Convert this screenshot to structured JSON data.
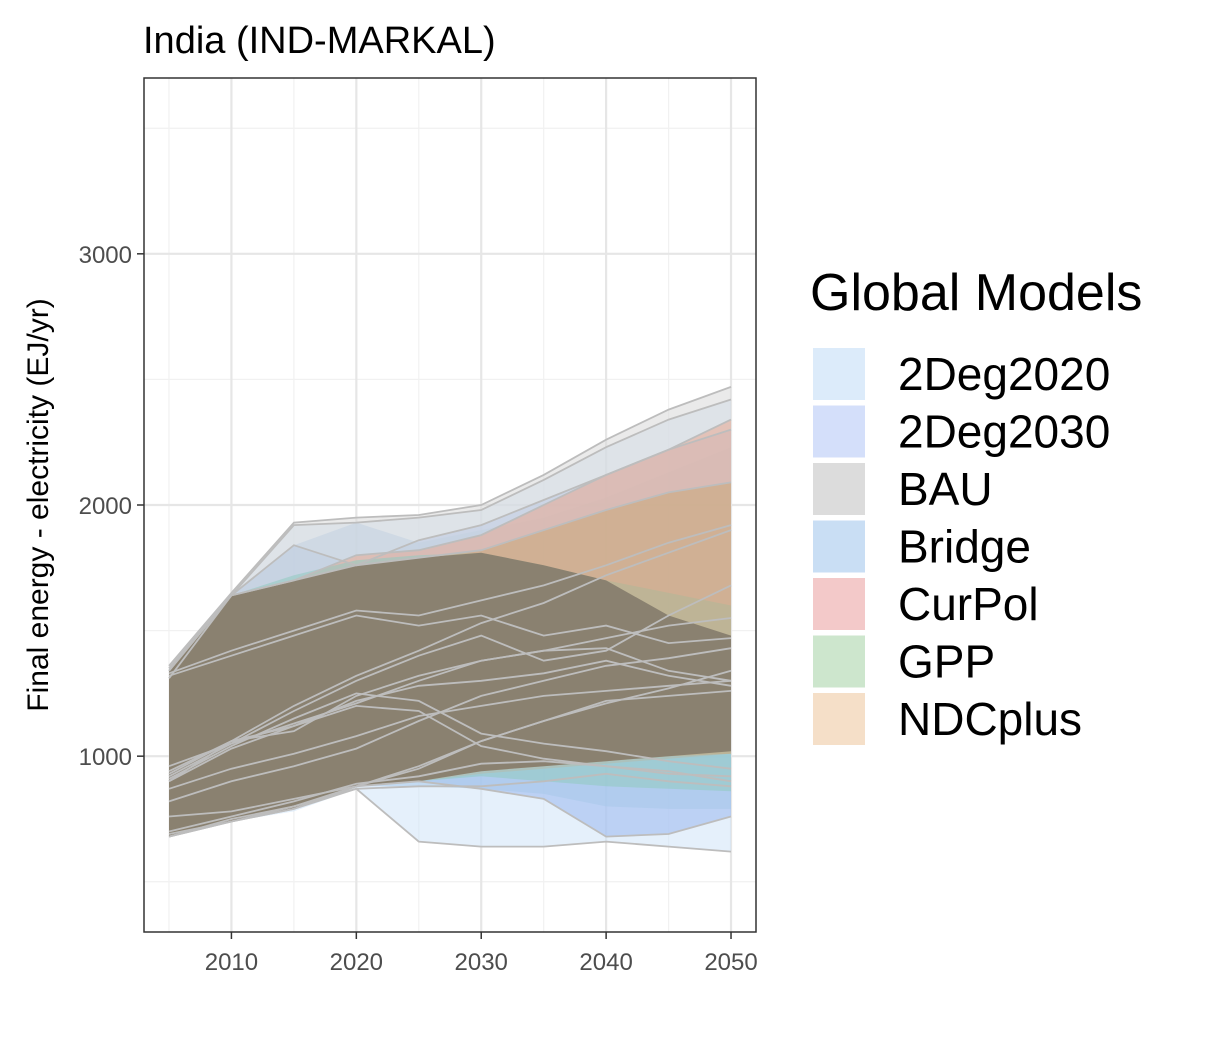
{
  "chart_data": {
    "type": "area",
    "title": "India (IND-MARKAL)",
    "xlabel": "",
    "ylabel": "Final energy - electricity (EJ/yr)",
    "xlim": [
      2003,
      2052
    ],
    "ylim": [
      300,
      3700
    ],
    "x_ticks": [
      2010,
      2020,
      2030,
      2040,
      2050
    ],
    "y_ticks": [
      1000,
      2000,
      3000
    ],
    "grid": true,
    "legend": {
      "title": "Global Models",
      "position": "right",
      "entries": [
        {
          "name": "2Deg2020",
          "color": "#dcebfa"
        },
        {
          "name": "2Deg2030",
          "color": "#d4dffa"
        },
        {
          "name": "BAU",
          "color": "#dcdcdc"
        },
        {
          "name": "Bridge",
          "color": "#c9def4"
        },
        {
          "name": "CurPol",
          "color": "#f3c9c9"
        },
        {
          "name": "GPP",
          "color": "#cde6cd"
        },
        {
          "name": "NDCplus",
          "color": "#f5dfc8"
        }
      ]
    },
    "x": [
      2005,
      2010,
      2015,
      2020,
      2025,
      2030,
      2035,
      2040,
      2045,
      2050
    ],
    "series": [
      {
        "name": "2Deg2020",
        "color": "#cfe4f8",
        "lower": [
          680,
          740,
          780,
          870,
          660,
          640,
          640,
          660,
          640,
          620
        ],
        "upper": [
          1310,
          1640,
          1920,
          1930,
          1950,
          1980,
          2100,
          2230,
          2340,
          2420
        ]
      },
      {
        "name": "2Deg2030",
        "color": "#9ab8ee",
        "lower": [
          680,
          740,
          790,
          880,
          900,
          870,
          830,
          680,
          690,
          760
        ],
        "upper": [
          1350,
          1640,
          1840,
          1760,
          1860,
          1920,
          2020,
          2120,
          2220,
          2300
        ]
      },
      {
        "name": "Bridge",
        "color": "#a8c8ea",
        "lower": [
          680,
          740,
          790,
          880,
          880,
          870,
          850,
          800,
          790,
          790
        ],
        "upper": [
          1350,
          1640,
          1840,
          1930,
          1850,
          1900,
          1950,
          2030,
          2130,
          2230
        ]
      },
      {
        "name": "BAU",
        "color": "#d9d9d9",
        "lower": [
          680,
          740,
          790,
          880,
          900,
          940,
          960,
          980,
          1000,
          1020
        ],
        "upper": [
          1360,
          1650,
          1930,
          1950,
          1960,
          2000,
          2120,
          2260,
          2380,
          2470
        ]
      },
      {
        "name": "CurPol",
        "color": "#e8a890",
        "lower": [
          680,
          740,
          790,
          880,
          900,
          930,
          950,
          970,
          990,
          1010
        ],
        "upper": [
          1340,
          1640,
          1700,
          1800,
          1820,
          1880,
          2000,
          2120,
          2220,
          2340
        ]
      },
      {
        "name": "GPP",
        "color": "#8fcabf",
        "lower": [
          680,
          740,
          790,
          880,
          900,
          920,
          900,
          880,
          870,
          860
        ],
        "upper": [
          1340,
          1640,
          1720,
          1780,
          1800,
          1810,
          1760,
          1700,
          1650,
          1600
        ]
      },
      {
        "name": "NDCplus",
        "color": "#c8a878",
        "lower": [
          680,
          740,
          790,
          880,
          900,
          940,
          960,
          980,
          1000,
          1010
        ],
        "upper": [
          1340,
          1640,
          1700,
          1760,
          1790,
          1820,
          1900,
          1980,
          2050,
          2090
        ]
      }
    ],
    "overlap_color": "#857d6d",
    "overlap": {
      "lower": [
        680,
        740,
        790,
        880,
        900,
        940,
        960,
        980,
        1000,
        1020
      ],
      "upper": [
        1340,
        1640,
        1700,
        1760,
        1790,
        1810,
        1760,
        1700,
        1560,
        1480
      ]
    },
    "lines": [
      [
        1310,
        1640,
        1920,
        1930,
        1950,
        1980,
        2100,
        2230,
        2340,
        2420
      ],
      [
        1360,
        1650,
        1930,
        1950,
        1960,
        2000,
        2120,
        2260,
        2380,
        2470
      ],
      [
        1350,
        1640,
        1840,
        1760,
        1860,
        1920,
        2020,
        2120,
        2220,
        2300
      ],
      [
        1340,
        1640,
        1700,
        1800,
        1820,
        1880,
        2000,
        2120,
        2220,
        2340
      ],
      [
        1340,
        1640,
        1700,
        1760,
        1790,
        1820,
        1900,
        1980,
        2050,
        2090
      ],
      [
        1330,
        1420,
        1500,
        1580,
        1560,
        1620,
        1680,
        1760,
        1850,
        1920
      ],
      [
        1320,
        1400,
        1480,
        1560,
        1520,
        1560,
        1480,
        1520,
        1450,
        1470
      ],
      [
        930,
        1060,
        1200,
        1320,
        1420,
        1530,
        1610,
        1720,
        1810,
        1900
      ],
      [
        920,
        1050,
        1180,
        1300,
        1400,
        1480,
        1380,
        1420,
        1560,
        1680
      ],
      [
        900,
        1060,
        1100,
        1240,
        1320,
        1380,
        1420,
        1430,
        1340,
        1300
      ],
      [
        940,
        1060,
        1120,
        1220,
        1280,
        1300,
        1330,
        1380,
        1320,
        1280
      ],
      [
        910,
        1040,
        1150,
        1250,
        1220,
        1090,
        1050,
        1020,
        980,
        950
      ],
      [
        900,
        1030,
        1120,
        1200,
        1180,
        1040,
        990,
        960,
        930,
        920
      ],
      [
        680,
        750,
        800,
        880,
        950,
        1060,
        1140,
        1220,
        1240,
        1260
      ],
      [
        700,
        760,
        820,
        890,
        920,
        970,
        980,
        960,
        940,
        900
      ],
      [
        690,
        740,
        800,
        870,
        880,
        880,
        900,
        930,
        900,
        880
      ],
      [
        680,
        740,
        790,
        870,
        660,
        640,
        640,
        660,
        640,
        620
      ],
      [
        680,
        740,
        790,
        880,
        900,
        870,
        830,
        680,
        690,
        760
      ],
      [
        760,
        780,
        830,
        880,
        960,
        1060,
        1140,
        1210,
        1270,
        1340
      ],
      [
        820,
        900,
        960,
        1030,
        1140,
        1240,
        1300,
        1360,
        1390,
        1430
      ],
      [
        870,
        950,
        1010,
        1080,
        1160,
        1200,
        1240,
        1260,
        1280,
        1300
      ],
      [
        960,
        1050,
        1130,
        1210,
        1300,
        1380,
        1420,
        1470,
        1520,
        1550
      ]
    ]
  }
}
